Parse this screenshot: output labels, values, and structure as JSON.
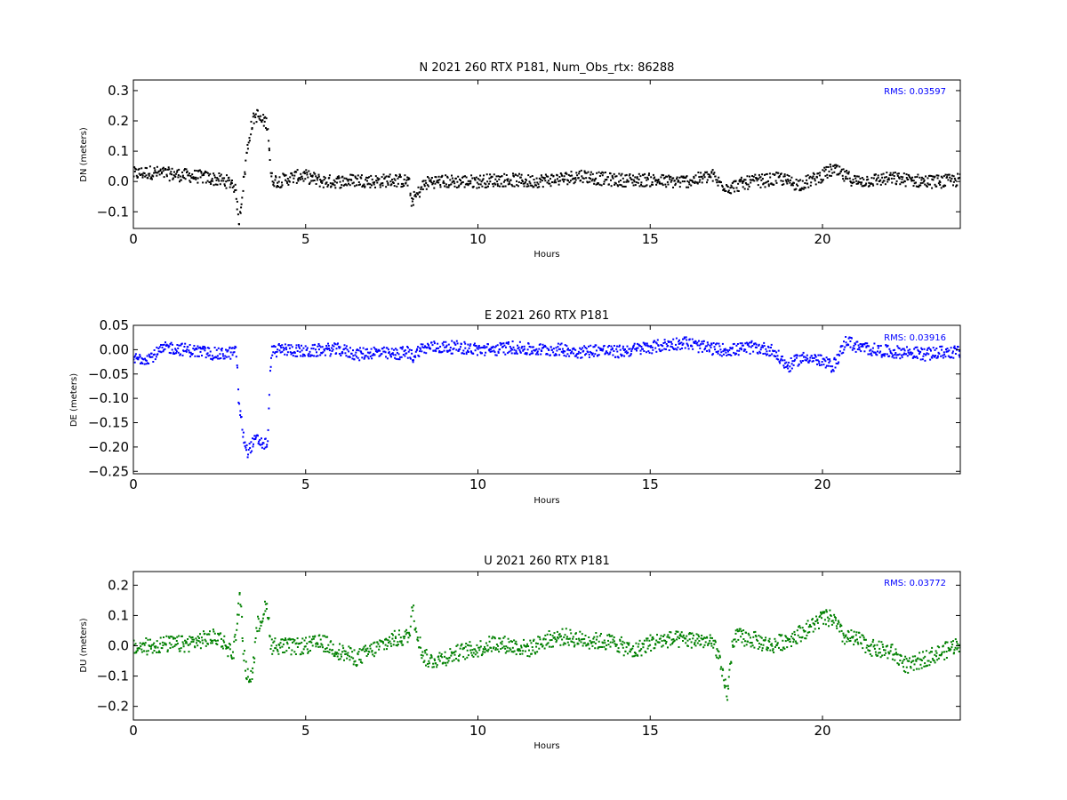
{
  "figure": {
    "background": "#ffffff"
  },
  "chart_data": [
    {
      "type": "scatter",
      "title": "N 2021 260 RTX  P181, Num_Obs_rtx: 86288",
      "xlabel": "Hours",
      "ylabel": "DN (meters)",
      "xlim": [
        0,
        24
      ],
      "ylim": [
        -0.155,
        0.335
      ],
      "xticks": [
        0,
        5,
        10,
        15,
        20
      ],
      "yticks": [
        -0.1,
        0.0,
        0.1,
        0.2,
        0.3
      ],
      "ytick_labels": [
        "−0.1",
        "0.0",
        "0.1",
        "0.2",
        "0.3"
      ],
      "grid": false,
      "color": "#000000",
      "rms_text": "RMS:  0.03597",
      "rms_color": "#0000ff",
      "series": [
        {
          "x": [
            0,
            0.5,
            1.0,
            1.5,
            2.0,
            2.5,
            2.9,
            3.0,
            3.05,
            3.1,
            3.2,
            3.3,
            3.4,
            3.5,
            3.6,
            3.7,
            3.8,
            3.9,
            4.0,
            4.2,
            4.5,
            4.9,
            5.2,
            5.5,
            6.0,
            6.5,
            7.0,
            7.5,
            8.0,
            8.05,
            8.2,
            8.4,
            8.6,
            9.0,
            9.5,
            10.0,
            10.5,
            11.0,
            11.5,
            12.0,
            12.5,
            13.0,
            13.5,
            14.0,
            14.5,
            15.0,
            15.5,
            16.0,
            16.5,
            16.8,
            17.0,
            17.3,
            17.6,
            18.0,
            18.5,
            18.8,
            19.0,
            19.3,
            19.6,
            20.0,
            20.3,
            20.6,
            21.0,
            21.5,
            22.0,
            22.5,
            23.0,
            23.5,
            24.0
          ],
          "y": [
            0.025,
            0.03,
            0.025,
            0.02,
            0.015,
            0.005,
            -0.005,
            -0.05,
            -0.14,
            -0.1,
            0.0,
            0.1,
            0.17,
            0.21,
            0.22,
            0.2,
            0.2,
            0.19,
            0.01,
            0.0,
            0.01,
            0.02,
            0.01,
            0.0,
            0.0,
            0.005,
            0.0,
            0.005,
            0.0,
            -0.065,
            -0.05,
            -0.015,
            0.0,
            0.0,
            0.0,
            0.0,
            0.005,
            0.005,
            0.0,
            0.005,
            0.01,
            0.02,
            0.01,
            0.005,
            0.005,
            0.005,
            0.0,
            0.0,
            0.01,
            0.02,
            -0.005,
            -0.02,
            -0.01,
            0.0,
            0.005,
            0.01,
            0.0,
            -0.01,
            0.0,
            0.02,
            0.04,
            0.02,
            0.0,
            0.005,
            0.01,
            0.005,
            0.0,
            0.0,
            0.005
          ],
          "scatter_amplitude": 0.022
        }
      ]
    },
    {
      "type": "scatter",
      "title": "E 2021 260 RTX  P181",
      "xlabel": "Hours",
      "ylabel": "DE (meters)",
      "xlim": [
        0,
        24
      ],
      "ylim": [
        -0.255,
        0.05
      ],
      "xticks": [
        0,
        5,
        10,
        15,
        20
      ],
      "yticks": [
        -0.25,
        -0.2,
        -0.15,
        -0.1,
        -0.05,
        0.0,
        0.05
      ],
      "ytick_labels": [
        "−0.25",
        "−0.20",
        "−0.15",
        "−0.10",
        "−0.05",
        "0.00",
        "0.05"
      ],
      "grid": false,
      "color": "#0000ff",
      "rms_text": "RMS:  0.03916",
      "rms_color": "#0000ff",
      "series": [
        {
          "x": [
            0,
            0.5,
            1.0,
            1.5,
            2.0,
            2.5,
            3.0,
            3.05,
            3.1,
            3.2,
            3.3,
            3.4,
            3.5,
            3.6,
            3.7,
            3.8,
            3.9,
            4.0,
            4.3,
            4.6,
            5.0,
            5.5,
            6.0,
            6.5,
            7.0,
            7.5,
            8.0,
            8.1,
            8.3,
            8.6,
            9.0,
            9.5,
            10.0,
            10.5,
            11.0,
            11.5,
            12.0,
            12.5,
            13.0,
            13.5,
            14.0,
            14.5,
            15.0,
            15.5,
            16.0,
            16.5,
            17.0,
            17.5,
            18.0,
            18.5,
            18.8,
            19.0,
            19.3,
            19.6,
            20.0,
            20.3,
            20.5,
            20.7,
            21.0,
            21.5,
            22.0,
            22.5,
            23.0,
            23.5,
            24.0
          ],
          "y": [
            -0.02,
            -0.015,
            0.005,
            0.0,
            -0.005,
            -0.01,
            -0.005,
            -0.1,
            -0.13,
            -0.18,
            -0.21,
            -0.2,
            -0.19,
            -0.185,
            -0.19,
            -0.195,
            -0.19,
            -0.005,
            0.0,
            0.0,
            -0.005,
            0.0,
            0.0,
            -0.01,
            -0.005,
            -0.01,
            -0.005,
            -0.015,
            0.0,
            0.005,
            0.005,
            0.005,
            0.0,
            0.0,
            0.005,
            0.0,
            0.0,
            0.0,
            -0.005,
            0.0,
            -0.005,
            0.0,
            0.005,
            0.01,
            0.015,
            0.005,
            0.0,
            0.0,
            0.005,
            0.0,
            -0.02,
            -0.035,
            -0.02,
            -0.015,
            -0.025,
            -0.035,
            -0.01,
            0.02,
            0.005,
            0.0,
            -0.005,
            -0.005,
            -0.01,
            -0.005,
            -0.005
          ],
          "scatter_amplitude": 0.013
        }
      ]
    },
    {
      "type": "scatter",
      "title": "U 2021 260 RTX  P181",
      "xlabel": "Hours",
      "ylabel": "DU (meters)",
      "xlim": [
        0,
        24
      ],
      "ylim": [
        -0.245,
        0.245
      ],
      "xticks": [
        0,
        5,
        10,
        15,
        20
      ],
      "yticks": [
        -0.2,
        -0.1,
        0.0,
        0.1,
        0.2
      ],
      "ytick_labels": [
        "−0.2",
        "−0.1",
        "0.0",
        "0.1",
        "0.2"
      ],
      "grid": false,
      "color": "#008000",
      "rms_text": "RMS:  0.03772",
      "rms_color": "#0000ff",
      "series": [
        {
          "x": [
            0,
            0.5,
            1.0,
            1.5,
            2.0,
            2.5,
            2.9,
            3.05,
            3.1,
            3.2,
            3.3,
            3.4,
            3.5,
            3.6,
            3.7,
            3.8,
            3.9,
            4.0,
            4.3,
            4.6,
            5.0,
            5.5,
            6.0,
            6.5,
            7.0,
            7.5,
            8.0,
            8.1,
            8.2,
            8.4,
            8.6,
            9.0,
            9.5,
            10.0,
            10.5,
            11.0,
            11.5,
            12.0,
            12.5,
            13.0,
            13.5,
            14.0,
            14.5,
            15.0,
            15.5,
            16.0,
            16.5,
            16.9,
            17.1,
            17.25,
            17.4,
            17.6,
            18.0,
            18.5,
            19.0,
            19.5,
            20.0,
            20.3,
            20.6,
            21.0,
            21.5,
            22.0,
            22.5,
            23.0,
            23.5,
            24.0
          ],
          "y": [
            -0.01,
            0.0,
            0.005,
            0.005,
            0.02,
            0.03,
            -0.03,
            0.12,
            0.16,
            -0.02,
            -0.1,
            -0.11,
            -0.05,
            0.07,
            0.08,
            0.12,
            0.12,
            0.0,
            0.0,
            -0.005,
            0.0,
            0.01,
            -0.02,
            -0.04,
            -0.01,
            0.02,
            0.03,
            0.13,
            0.06,
            -0.03,
            -0.05,
            -0.04,
            -0.02,
            -0.01,
            0.01,
            0.0,
            -0.01,
            0.02,
            0.03,
            0.02,
            0.015,
            0.01,
            -0.02,
            0.01,
            0.02,
            0.02,
            0.02,
            0.0,
            -0.1,
            -0.16,
            0.02,
            0.03,
            0.02,
            0.0,
            0.02,
            0.05,
            0.09,
            0.09,
            0.03,
            0.02,
            -0.01,
            -0.02,
            -0.07,
            -0.04,
            -0.02,
            0.01
          ],
          "scatter_amplitude": 0.028
        }
      ]
    }
  ]
}
